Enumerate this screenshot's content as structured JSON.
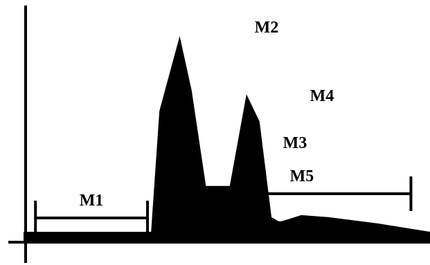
{
  "chart_data": {
    "type": "area",
    "title": "",
    "xlabel": "",
    "ylabel": "",
    "grid": false,
    "legend": "none",
    "colors": {
      "fill": "#000000",
      "axis": "#000000",
      "background": "#ffffff"
    },
    "x": [
      0,
      31,
      84,
      107,
      114,
      131,
      141,
      153,
      155,
      162,
      173,
      187,
      198,
      208,
      214,
      216,
      222,
      233,
      256,
      297,
      341
    ],
    "y": [
      0.05,
      0.05,
      0.05,
      0.05,
      0.63,
      0.99,
      0.73,
      0.27,
      0.27,
      0.27,
      0.27,
      0.71,
      0.58,
      0.12,
      0.1,
      0.1,
      0.11,
      0.13,
      0.12,
      0.09,
      0.05
    ],
    "xlim": [
      0,
      341
    ],
    "ylim": [
      0,
      1.08
    ],
    "annotations": {
      "markers": [
        {
          "label": "M2"
        },
        {
          "label": "M3"
        },
        {
          "label": "M4"
        }
      ],
      "ranges": [
        {
          "label": "M1",
          "x_start": 10,
          "x_end": 104
        },
        {
          "label": "M5",
          "x_start": 142,
          "x_end": 325
        }
      ]
    }
  }
}
